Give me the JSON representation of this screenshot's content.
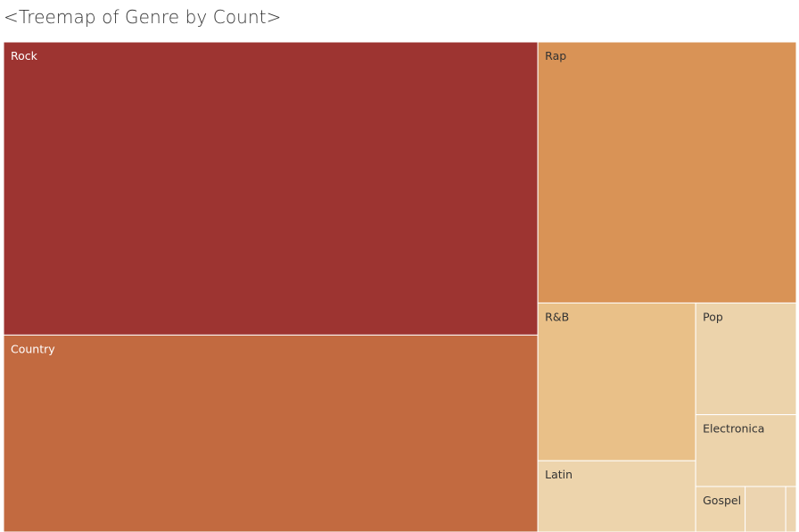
{
  "title": "<Treemap of Genre by Count>",
  "chart_data": {
    "type": "treemap",
    "title": "<Treemap of Genre by Count>",
    "items": [
      {
        "name": "Rock",
        "label": "Rock",
        "value": 195,
        "color": "#9d3431",
        "label_color": "#ffffff"
      },
      {
        "name": "Country",
        "label": "Country",
        "value": 131,
        "color": "#c26a40",
        "label_color": "#ffffff"
      },
      {
        "name": "Rap",
        "label": "Rap",
        "value": 84,
        "color": "#d99356",
        "label_color": "#333333"
      },
      {
        "name": "R&B",
        "label": "R&B",
        "value": 31,
        "color": "#e9c088",
        "label_color": "#333333"
      },
      {
        "name": "Latin",
        "label": "Latin",
        "value": 14,
        "color": "#edd4ac",
        "label_color": "#333333"
      },
      {
        "name": "Pop",
        "label": "Pop",
        "value": 14,
        "color": "#ecd3ab",
        "label_color": "#333333"
      },
      {
        "name": "Electronica",
        "label": "Electronica",
        "value": 9,
        "color": "#ecd3ab",
        "label_color": "#333333"
      },
      {
        "name": "Gospel",
        "label": "Gospel",
        "value": 2.8,
        "color": "#edd4ac",
        "label_color": "#333333"
      },
      {
        "name": "Other 1",
        "label": "",
        "value": 2.3,
        "color": "#ecd4b0",
        "label_color": "#333333"
      },
      {
        "name": "Other 2",
        "label": "",
        "value": 0.6,
        "color": "#ecd4b0",
        "label_color": "#333333"
      }
    ]
  }
}
